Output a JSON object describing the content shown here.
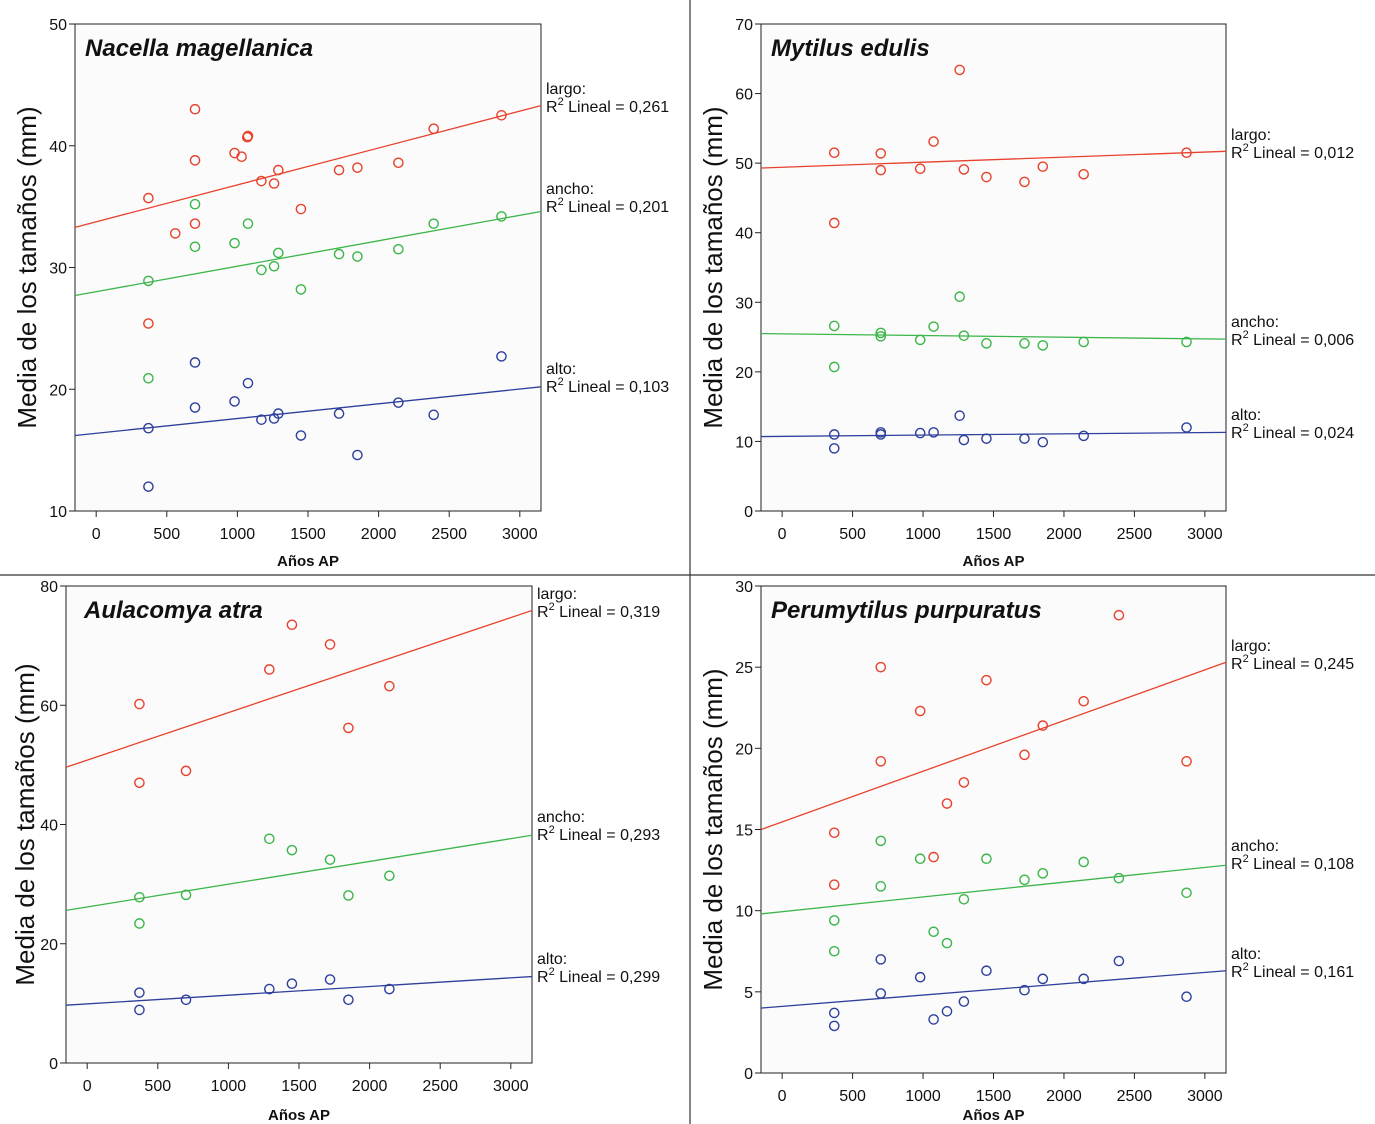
{
  "chart_data": [
    {
      "type": "scatter",
      "title": "Nacella magellanica",
      "xlabel": "Años AP",
      "ylabel": "Media de los tamaños (mm)",
      "xlim": [
        -150,
        3150
      ],
      "ylim": [
        10,
        50
      ],
      "xticks": [
        0,
        500,
        1000,
        1500,
        2000,
        2500,
        3000
      ],
      "yticks": [
        10,
        20,
        30,
        40,
        50
      ],
      "grid": false,
      "series": [
        {
          "name": "largo",
          "color": "#e8412c",
          "points": [
            [
              370,
              35.7
            ],
            [
              700,
              43
            ],
            [
              700,
              38.8
            ],
            [
              700,
              33.6
            ],
            [
              560,
              32.8
            ],
            [
              980,
              39.4
            ],
            [
              1030,
              39.1
            ],
            [
              1070,
              40.7
            ],
            [
              1075,
              40.8
            ],
            [
              1170,
              37.1
            ],
            [
              1260,
              36.9
            ],
            [
              1290,
              38
            ],
            [
              1450,
              34.8
            ],
            [
              1720,
              38
            ],
            [
              1850,
              38.2
            ],
            [
              2140,
              38.6
            ],
            [
              2390,
              41.4
            ],
            [
              2870,
              42.5
            ],
            [
              370,
              25.4
            ]
          ],
          "fit": [
            33.3,
            43.3
          ],
          "label_line1": "largo:",
          "label_r2": "R",
          "label_r2_sup": "2",
          "label_r2_rest": " Lineal = 0,261"
        },
        {
          "name": "ancho",
          "color": "#3cb54a",
          "points": [
            [
              370,
              28.9
            ],
            [
              370,
              20.9
            ],
            [
              700,
              35.2
            ],
            [
              700,
              31.7
            ],
            [
              980,
              32
            ],
            [
              1075,
              33.6
            ],
            [
              1170,
              29.8
            ],
            [
              1260,
              30.1
            ],
            [
              1290,
              31.2
            ],
            [
              1450,
              28.2
            ],
            [
              1720,
              31.1
            ],
            [
              1850,
              30.9
            ],
            [
              2140,
              31.5
            ],
            [
              2390,
              33.6
            ],
            [
              2870,
              34.2
            ]
          ],
          "fit": [
            27.7,
            34.6
          ],
          "label_line1": "ancho:",
          "label_r2": "R",
          "label_r2_sup": "2",
          "label_r2_rest": " Lineal = 0,201"
        },
        {
          "name": "alto",
          "color": "#2e3f9c",
          "points": [
            [
              370,
              16.8
            ],
            [
              370,
              12
            ],
            [
              700,
              22.2
            ],
            [
              700,
              18.5
            ],
            [
              980,
              19
            ],
            [
              1075,
              20.5
            ],
            [
              1170,
              17.5
            ],
            [
              1260,
              17.6
            ],
            [
              1290,
              18
            ],
            [
              1450,
              16.2
            ],
            [
              1720,
              18
            ],
            [
              1850,
              14.6
            ],
            [
              2140,
              18.9
            ],
            [
              2390,
              17.9
            ],
            [
              2870,
              22.7
            ]
          ],
          "fit": [
            16.2,
            20.2
          ],
          "label_line1": "alto:",
          "label_r2": "R",
          "label_r2_sup": "2",
          "label_r2_rest": " Lineal = 0,103"
        }
      ]
    },
    {
      "type": "scatter",
      "title": "Mytilus edulis",
      "xlabel": "Años AP",
      "ylabel": "Media de los tamaños (mm)",
      "xlim": [
        -150,
        3150
      ],
      "ylim": [
        0,
        70
      ],
      "xticks": [
        0,
        500,
        1000,
        1500,
        2000,
        2500,
        3000
      ],
      "yticks": [
        0,
        10,
        20,
        30,
        40,
        50,
        60,
        70
      ],
      "grid": false,
      "series": [
        {
          "name": "largo",
          "color": "#e8412c",
          "points": [
            [
              370,
              51.5
            ],
            [
              370,
              41.4
            ],
            [
              700,
              51.4
            ],
            [
              700,
              49
            ],
            [
              980,
              49.2
            ],
            [
              1075,
              53.1
            ],
            [
              1260,
              63.4
            ],
            [
              1290,
              49.1
            ],
            [
              1450,
              48
            ],
            [
              1720,
              47.3
            ],
            [
              1850,
              49.5
            ],
            [
              2140,
              48.4
            ],
            [
              2870,
              51.5
            ]
          ],
          "fit": [
            49.3,
            51.7
          ],
          "label_line1": "largo:",
          "label_r2": "R",
          "label_r2_sup": "2",
          "label_r2_rest": " Lineal = 0,012"
        },
        {
          "name": "ancho",
          "color": "#3cb54a",
          "points": [
            [
              370,
              26.6
            ],
            [
              370,
              20.7
            ],
            [
              700,
              25.6
            ],
            [
              700,
              25.1
            ],
            [
              980,
              24.6
            ],
            [
              1075,
              26.5
            ],
            [
              1260,
              30.8
            ],
            [
              1290,
              25.2
            ],
            [
              1450,
              24.1
            ],
            [
              1720,
              24.1
            ],
            [
              1850,
              23.8
            ],
            [
              2140,
              24.3
            ],
            [
              2870,
              24.3
            ]
          ],
          "fit": [
            25.5,
            24.7
          ],
          "label_line1": "ancho:",
          "label_r2": "R",
          "label_r2_sup": "2",
          "label_r2_rest": " Lineal = 0,006"
        },
        {
          "name": "alto",
          "color": "#2e3f9c",
          "points": [
            [
              370,
              11
            ],
            [
              370,
              9
            ],
            [
              700,
              11.3
            ],
            [
              700,
              11
            ],
            [
              980,
              11.2
            ],
            [
              1075,
              11.3
            ],
            [
              1260,
              13.7
            ],
            [
              1290,
              10.2
            ],
            [
              1450,
              10.4
            ],
            [
              1720,
              10.4
            ],
            [
              1850,
              9.9
            ],
            [
              2140,
              10.8
            ],
            [
              2870,
              12
            ]
          ],
          "fit": [
            10.7,
            11.3
          ],
          "label_line1": "alto:",
          "label_r2": "R",
          "label_r2_sup": "2",
          "label_r2_rest": " Lineal = 0,024"
        }
      ]
    },
    {
      "type": "scatter",
      "title": "Aulacomya atra",
      "xlabel": "Años AP",
      "ylabel": "Media de los tamaños (mm)",
      "xlim": [
        -150,
        3150
      ],
      "ylim": [
        0,
        80
      ],
      "xticks": [
        0,
        500,
        1000,
        1500,
        2000,
        2500,
        3000
      ],
      "yticks": [
        0,
        20,
        40,
        60,
        80
      ],
      "grid": false,
      "series": [
        {
          "name": "largo",
          "color": "#e8412c",
          "points": [
            [
              370,
              60.2
            ],
            [
              370,
              47
            ],
            [
              700,
              49
            ],
            [
              1290,
              66
            ],
            [
              1450,
              73.5
            ],
            [
              1720,
              70.2
            ],
            [
              1850,
              56.2
            ],
            [
              2140,
              63.2
            ]
          ],
          "fit": [
            49.6,
            75.9
          ],
          "label_line1": "largo:",
          "label_r2": "R",
          "label_r2_sup": "2",
          "label_r2_rest": " Lineal = 0,319"
        },
        {
          "name": "ancho",
          "color": "#3cb54a",
          "points": [
            [
              370,
              27.8
            ],
            [
              370,
              23.4
            ],
            [
              700,
              28.2
            ],
            [
              1290,
              37.6
            ],
            [
              1450,
              35.7
            ],
            [
              1720,
              34.1
            ],
            [
              1850,
              28.1
            ],
            [
              2140,
              31.4
            ]
          ],
          "fit": [
            25.6,
            38.2
          ],
          "label_line1": "ancho:",
          "label_r2": "R",
          "label_r2_sup": "2",
          "label_r2_rest": " Lineal = 0,293"
        },
        {
          "name": "alto",
          "color": "#2e3f9c",
          "points": [
            [
              370,
              11.8
            ],
            [
              370,
              8.9
            ],
            [
              700,
              10.6
            ],
            [
              1290,
              12.4
            ],
            [
              1450,
              13.3
            ],
            [
              1720,
              14
            ],
            [
              1850,
              10.6
            ],
            [
              2140,
              12.4
            ]
          ],
          "fit": [
            9.7,
            14.5
          ],
          "label_line1": "alto:",
          "label_r2": "R",
          "label_r2_sup": "2",
          "label_r2_rest": " Lineal = 0,299"
        }
      ]
    },
    {
      "type": "scatter",
      "title": "Perumytilus purpuratus",
      "xlabel": "Años AP",
      "ylabel": "Media de los tamaños (mm)",
      "xlim": [
        -150,
        3150
      ],
      "ylim": [
        0,
        30
      ],
      "xticks": [
        0,
        500,
        1000,
        1500,
        2000,
        2500,
        3000
      ],
      "yticks": [
        0,
        5,
        10,
        15,
        20,
        25,
        30
      ],
      "grid": false,
      "series": [
        {
          "name": "largo",
          "color": "#e8412c",
          "points": [
            [
              370,
              14.8
            ],
            [
              370,
              11.6
            ],
            [
              700,
              25
            ],
            [
              700,
              19.2
            ],
            [
              980,
              22.3
            ],
            [
              1075,
              13.3
            ],
            [
              1170,
              16.6
            ],
            [
              1290,
              17.9
            ],
            [
              1450,
              24.2
            ],
            [
              1720,
              19.6
            ],
            [
              1850,
              21.4
            ],
            [
              2140,
              22.9
            ],
            [
              2390,
              28.2
            ],
            [
              2870,
              19.2
            ]
          ],
          "fit": [
            15,
            25.3
          ],
          "label_line1": "largo:",
          "label_r2": "R",
          "label_r2_sup": "2",
          "label_r2_rest": " Lineal = 0,245"
        },
        {
          "name": "ancho",
          "color": "#3cb54a",
          "points": [
            [
              370,
              9.4
            ],
            [
              370,
              7.5
            ],
            [
              700,
              14.3
            ],
            [
              700,
              11.5
            ],
            [
              980,
              13.2
            ],
            [
              1075,
              8.7
            ],
            [
              1170,
              8
            ],
            [
              1290,
              10.7
            ],
            [
              1450,
              13.2
            ],
            [
              1720,
              11.9
            ],
            [
              1850,
              12.3
            ],
            [
              2140,
              13
            ],
            [
              2390,
              12
            ],
            [
              2870,
              11.1
            ]
          ],
          "fit": [
            9.8,
            12.8
          ],
          "label_line1": "ancho:",
          "label_r2": "R",
          "label_r2_sup": "2",
          "label_r2_rest": " Lineal = 0,108"
        },
        {
          "name": "alto",
          "color": "#2e3f9c",
          "points": [
            [
              370,
              3.7
            ],
            [
              370,
              2.9
            ],
            [
              700,
              7
            ],
            [
              700,
              4.9
            ],
            [
              980,
              5.9
            ],
            [
              1075,
              3.3
            ],
            [
              1170,
              3.8
            ],
            [
              1290,
              4.4
            ],
            [
              1450,
              6.3
            ],
            [
              1720,
              5.1
            ],
            [
              1850,
              5.8
            ],
            [
              2140,
              5.8
            ],
            [
              2390,
              6.9
            ],
            [
              2870,
              4.7
            ]
          ],
          "fit": [
            4,
            6.3
          ],
          "label_line1": "alto:",
          "label_r2": "R",
          "label_r2_sup": "2",
          "label_r2_rest": " Lineal = 0,161"
        }
      ]
    }
  ]
}
